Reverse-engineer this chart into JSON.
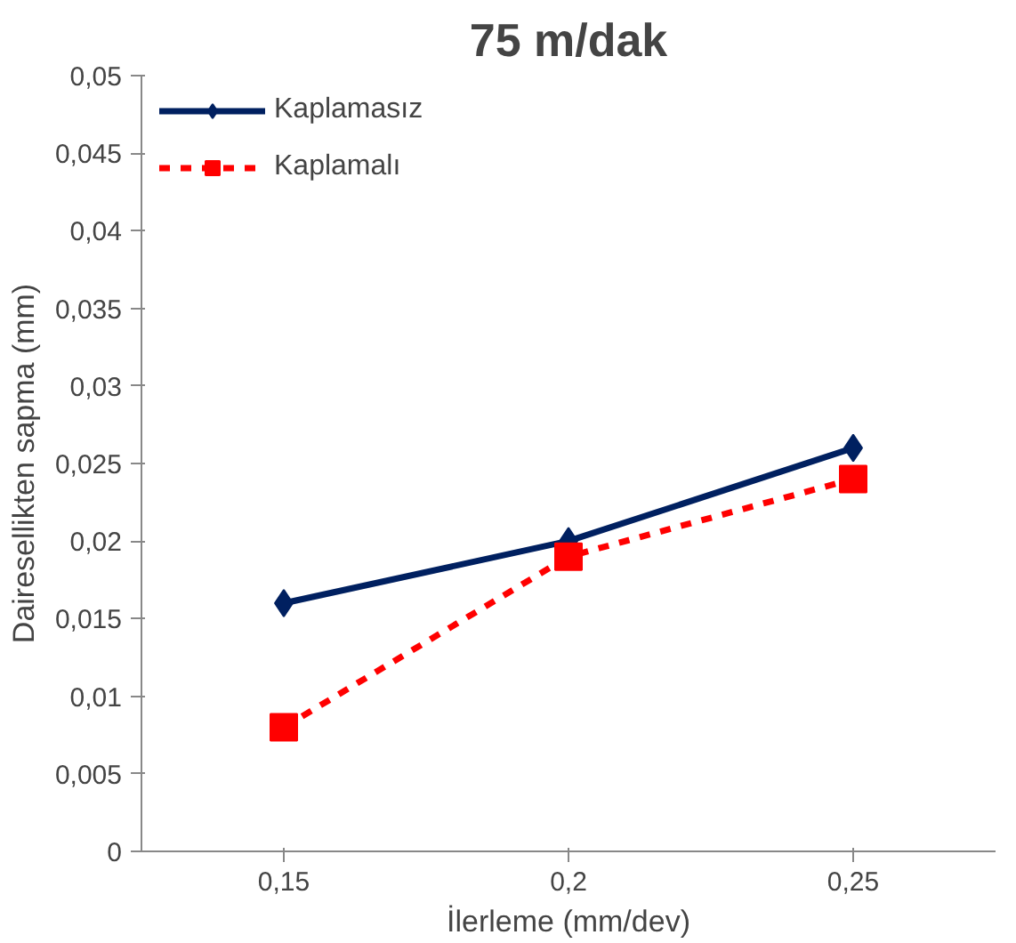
{
  "chart_data": {
    "type": "line",
    "title": "75 m/dak",
    "xlabel": "İlerleme (mm/dev)",
    "ylabel": "Dairesellikten sapma (mm)",
    "categories": [
      "0,15",
      "0,2",
      "0,25"
    ],
    "series": [
      {
        "name": "Kaplamasız",
        "color": "#002060",
        "values": [
          0.016,
          0.02,
          0.026
        ],
        "marker": "diamond",
        "line_style": "solid"
      },
      {
        "name": "Kaplamalı",
        "color": "#ff0000",
        "values": [
          0.008,
          0.019,
          0.024
        ],
        "marker": "square",
        "line_style": "dashed"
      }
    ],
    "ylim": [
      0,
      0.05
    ],
    "yticks": [
      {
        "value": 0,
        "label": "0"
      },
      {
        "value": 0.005,
        "label": "0,005"
      },
      {
        "value": 0.01,
        "label": "0,01"
      },
      {
        "value": 0.015,
        "label": "0,015"
      },
      {
        "value": 0.02,
        "label": "0,02"
      },
      {
        "value": 0.025,
        "label": "0,025"
      },
      {
        "value": 0.03,
        "label": "0,03"
      },
      {
        "value": 0.035,
        "label": "0,035"
      },
      {
        "value": 0.04,
        "label": "0,04"
      },
      {
        "value": 0.045,
        "label": "0,045"
      },
      {
        "value": 0.05,
        "label": "0,05"
      }
    ],
    "grid": false,
    "legend": "top left"
  }
}
